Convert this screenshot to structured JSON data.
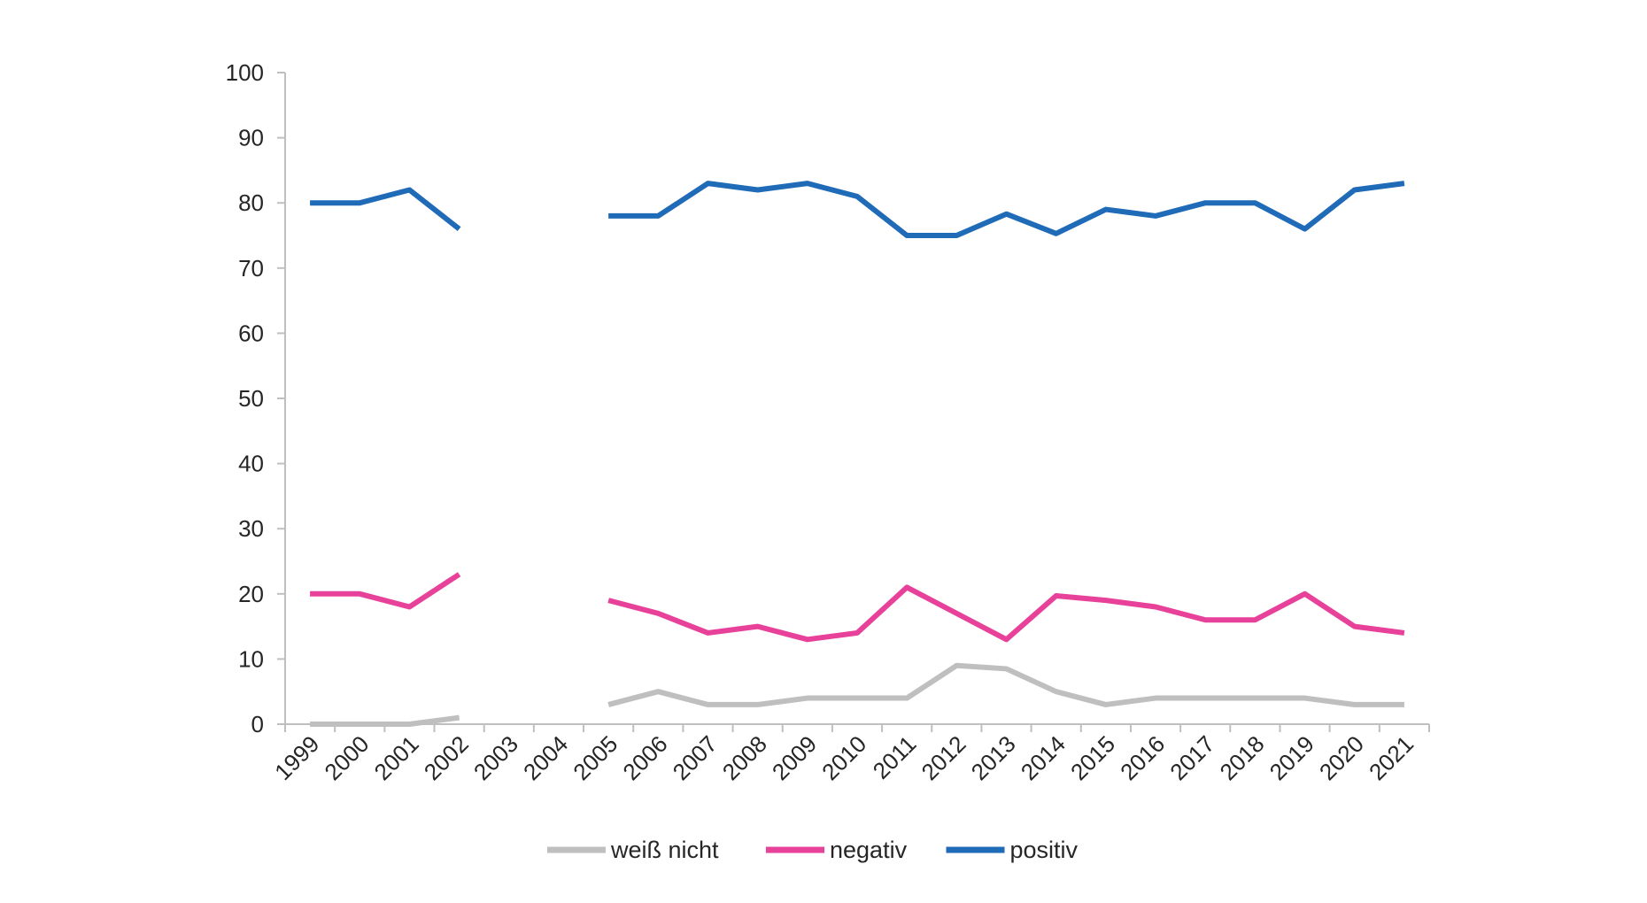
{
  "chart_data": {
    "type": "line",
    "title": "",
    "xlabel": "",
    "ylabel": "",
    "ylim": [
      0,
      100
    ],
    "y_ticks": [
      "0",
      "10",
      "20",
      "30",
      "40",
      "50",
      "60",
      "70",
      "80",
      "90",
      "100"
    ],
    "categories": [
      "1999",
      "2000",
      "2001",
      "2002",
      "2003",
      "2004",
      "2005",
      "2006",
      "2007",
      "2008",
      "2009",
      "2010",
      "2011",
      "2012",
      "2013",
      "2014",
      "2015",
      "2016",
      "2017",
      "2018",
      "2019",
      "2020",
      "2021"
    ],
    "grid": false,
    "legend_position": "bottom",
    "series": [
      {
        "name": "weiß nicht",
        "color": "#bfbfbf",
        "values": [
          0,
          0,
          0,
          1,
          null,
          null,
          3,
          5,
          3,
          3,
          4,
          4,
          4,
          9,
          8.5,
          5,
          3,
          4,
          4,
          4,
          4,
          3,
          3
        ]
      },
      {
        "name": "negativ",
        "color": "#e8419a",
        "values": [
          20,
          20,
          18,
          23,
          null,
          null,
          19,
          17,
          14,
          15,
          13,
          14,
          21,
          17,
          13,
          19.7,
          19,
          18,
          16,
          16,
          20,
          15,
          14
        ]
      },
      {
        "name": "positiv",
        "color": "#1f6bb8",
        "values": [
          80,
          80,
          82,
          76,
          null,
          null,
          78,
          78,
          83,
          82,
          83,
          81,
          75,
          75,
          78.3,
          75.3,
          79,
          78,
          80,
          80,
          76,
          82,
          83
        ]
      }
    ]
  }
}
